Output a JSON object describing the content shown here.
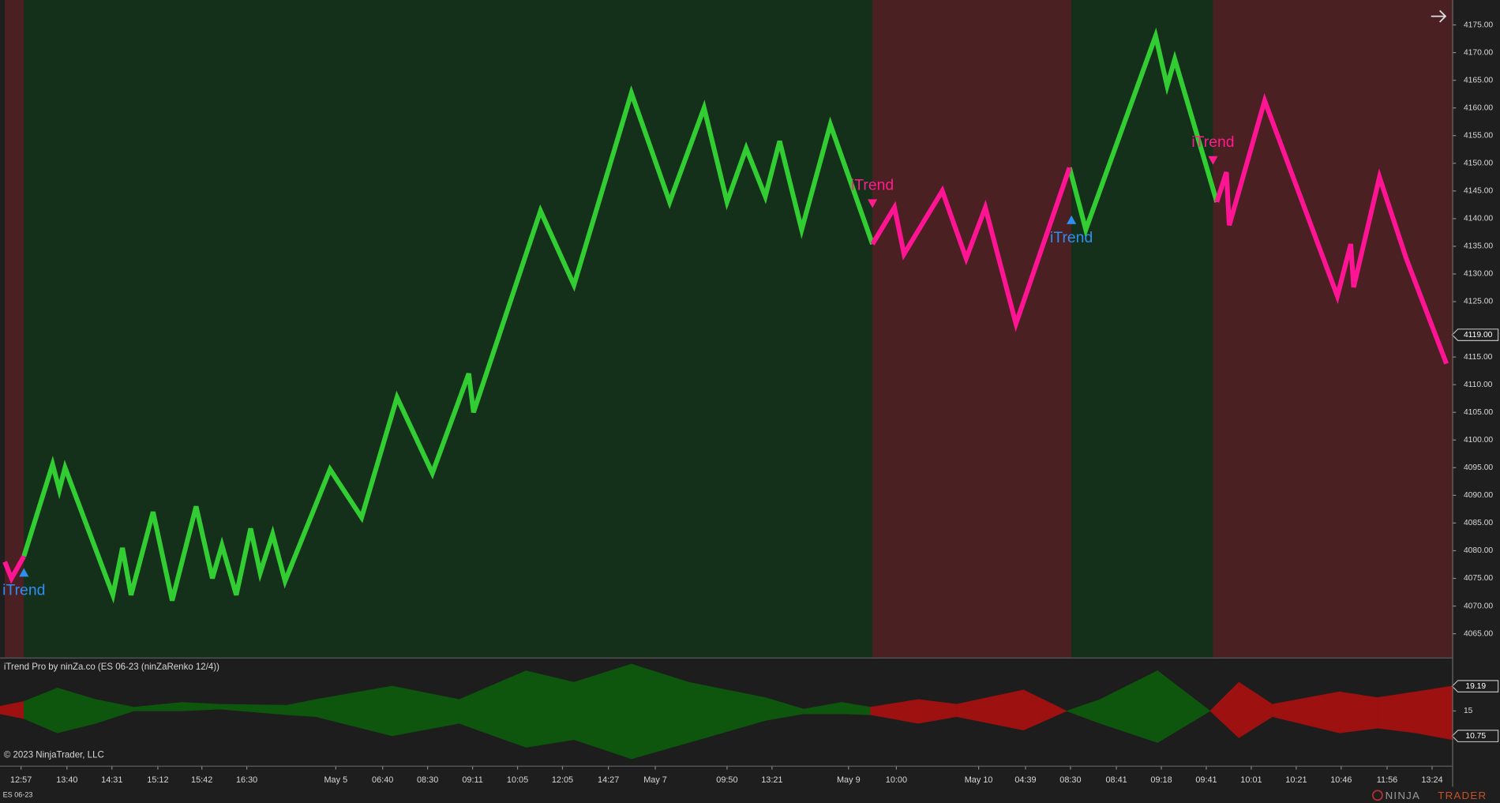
{
  "chart_data": {
    "type": "renko",
    "title": "iTrend Pro by ninZa.co (ES 06-23 (ninZaRenko 12/4))",
    "instrument_label": "ES 06-23",
    "copyright": "© 2023 NinjaTrader, LLC",
    "brand": [
      "NINJA",
      "TRADER"
    ],
    "xlim": [
      0,
      1518
    ],
    "ylim": [
      4060.7,
      4179.5
    ],
    "yticks": [
      {
        "value": 4065,
        "label": "4065.00"
      },
      {
        "value": 4070,
        "label": "4070.00"
      },
      {
        "value": 4075,
        "label": "4075.00"
      },
      {
        "value": 4080,
        "label": "4080.00"
      },
      {
        "value": 4085,
        "label": "4085.00"
      },
      {
        "value": 4090,
        "label": "4090.00"
      },
      {
        "value": 4095,
        "label": "4095.00"
      },
      {
        "value": 4100,
        "label": "4100.00"
      },
      {
        "value": 4105,
        "label": "4105.00"
      },
      {
        "value": 4110,
        "label": "4110.00"
      },
      {
        "value": 4115,
        "label": "4115.00"
      },
      {
        "value": 4125,
        "label": "4125.00"
      },
      {
        "value": 4130,
        "label": "4130.00"
      },
      {
        "value": 4135,
        "label": "4135.00"
      },
      {
        "value": 4140,
        "label": "4140.00"
      },
      {
        "value": 4145,
        "label": "4145.00"
      },
      {
        "value": 4150,
        "label": "4150.00"
      },
      {
        "value": 4155,
        "label": "4155.00"
      },
      {
        "value": 4160,
        "label": "4160.00"
      },
      {
        "value": 4165,
        "label": "4165.00"
      },
      {
        "value": 4170,
        "label": "4170.00"
      },
      {
        "value": 4175,
        "label": "4175.00"
      }
    ],
    "last_price": {
      "value": 4119,
      "label": "4119.00"
    },
    "xticks": [
      {
        "value": 22,
        "label": "12:57"
      },
      {
        "value": 70,
        "label": "13:40"
      },
      {
        "value": 117,
        "label": "14:31"
      },
      {
        "value": 165,
        "label": "15:12"
      },
      {
        "value": 211,
        "label": "15:42"
      },
      {
        "value": 258,
        "label": "16:30"
      },
      {
        "value": 351,
        "label": "May 5"
      },
      {
        "value": 400,
        "label": "06:40"
      },
      {
        "value": 447,
        "label": "08:30"
      },
      {
        "value": 494,
        "label": "09:11"
      },
      {
        "value": 541,
        "label": "10:05"
      },
      {
        "value": 588,
        "label": "12:05"
      },
      {
        "value": 636,
        "label": "14:27"
      },
      {
        "value": 685,
        "label": "May 7"
      },
      {
        "value": 760,
        "label": "09:50"
      },
      {
        "value": 807,
        "label": "13:21"
      },
      {
        "value": 887,
        "label": "May 9"
      },
      {
        "value": 937,
        "label": "10:00"
      },
      {
        "value": 1023,
        "label": "May 10"
      },
      {
        "value": 1072,
        "label": "04:39"
      },
      {
        "value": 1119,
        "label": "08:30"
      },
      {
        "value": 1167,
        "label": "08:41"
      },
      {
        "value": 1214,
        "label": "09:18"
      },
      {
        "value": 1261,
        "label": "09:41"
      },
      {
        "value": 1308,
        "label": "10:01"
      },
      {
        "value": 1355,
        "label": "10:21"
      },
      {
        "value": 1402,
        "label": "10:46"
      },
      {
        "value": 1450,
        "label": "11:56"
      },
      {
        "value": 1497,
        "label": "13:24"
      }
    ],
    "x": [
      5,
      12,
      25,
      55,
      62,
      68,
      118,
      128,
      137,
      160,
      180,
      205,
      222,
      232,
      247,
      262,
      272,
      285,
      298,
      345,
      378,
      415,
      452,
      490,
      495,
      565,
      600,
      660,
      700,
      736,
      760,
      780,
      800,
      815,
      838,
      868,
      912,
      935,
      945,
      985,
      1010,
      1030,
      1062,
      1118,
      1135,
      1208,
      1220,
      1228,
      1272,
      1282,
      1285,
      1322,
      1398,
      1412,
      1415,
      1442,
      1470,
      1512
    ],
    "series": [
      {
        "name": "up",
        "color": "#32cd32",
        "values": [
          null,
          null,
          4079,
          4095.6,
          4091,
          4095,
          4072,
          4080.5,
          4072,
          4087,
          4071,
          4088,
          4075,
          4081,
          4072,
          4084,
          4076,
          4083,
          4074.5,
          4094.7,
          4086,
          4107.7,
          4094,
          4112,
          4105,
          4141.4,
          4128,
          4162.7,
          4143,
          4160,
          4143,
          4152.7,
          4144,
          4154,
          4138,
          4157,
          4135.4,
          null,
          null,
          null,
          null,
          null,
          null,
          4149.2,
          4138,
          4173,
          4164,
          4168.8,
          4143,
          null,
          null,
          null,
          null,
          null,
          null,
          null,
          null,
          null
        ]
      },
      {
        "name": "down",
        "color": "#ff1493",
        "values": [
          4078,
          4075,
          4079,
          null,
          null,
          null,
          null,
          null,
          null,
          null,
          null,
          null,
          null,
          null,
          null,
          null,
          null,
          null,
          null,
          null,
          null,
          null,
          null,
          null,
          null,
          null,
          null,
          null,
          null,
          null,
          null,
          null,
          null,
          null,
          null,
          null,
          4135.4,
          4142,
          4133.6,
          4145,
          4132.8,
          4142,
          4121,
          4149.2,
          null,
          null,
          null,
          null,
          4143,
          4148.4,
          4138.8,
          4161.3,
          4126,
          4135.4,
          4127.6,
          4147.5,
          4132.8,
          4113.8
        ]
      }
    ],
    "zones": [
      {
        "start": 5,
        "end": 25,
        "trend": "down"
      },
      {
        "start": 25,
        "end": 912,
        "trend": "up"
      },
      {
        "start": 912,
        "end": 1120,
        "trend": "down"
      },
      {
        "start": 1120,
        "end": 1268,
        "trend": "up"
      },
      {
        "start": 1268,
        "end": 1518,
        "trend": "down"
      }
    ],
    "zone_colors": {
      "up": "#15301a",
      "down": "#4a2022"
    },
    "signals": [
      {
        "x": 25,
        "price": 4076,
        "direction": "up",
        "label": "iTrend"
      },
      {
        "x": 912,
        "price": 4142.8,
        "direction": "down",
        "label": "iTrend"
      },
      {
        "x": 1120,
        "price": 4139.7,
        "direction": "up",
        "label": "iTrend"
      },
      {
        "x": 1268,
        "price": 4150.6,
        "direction": "down",
        "label": "iTrend"
      }
    ],
    "signal_colors": {
      "up": "#2e8ff0",
      "down": "#ff1c8c"
    },
    "oscillator": {
      "ylim": [
        5.72,
        23.9
      ],
      "yticks": [
        15
      ],
      "markers": [
        19.19,
        10.75
      ],
      "colors": {
        "up": "#0e560e",
        "down": "#9e1111"
      },
      "x": [
        0,
        25,
        60,
        100,
        140,
        190,
        230,
        300,
        330,
        410,
        480,
        550,
        600,
        660,
        720,
        800,
        840,
        880,
        910,
        960,
        1000,
        1070,
        1115,
        1150,
        1210,
        1265,
        1295,
        1330,
        1400,
        1440,
        1480,
        1518
      ],
      "upper": [
        15.81,
        16.62,
        18.9,
        16.95,
        15.65,
        16.46,
        16.14,
        15.97,
        16.95,
        19.22,
        16.95,
        21.82,
        19.87,
        22.95,
        19.87,
        17.27,
        15.32,
        16.46,
        15.65,
        16.95,
        16.14,
        18.57,
        15,
        16.95,
        21.82,
        15,
        19.87,
        16.14,
        18.25,
        17.27,
        18.25,
        19.22
      ],
      "lower": [
        14.51,
        13.7,
        11.27,
        12.89,
        15,
        15,
        15.32,
        14.35,
        14.03,
        10.78,
        12.89,
        8.83,
        10.13,
        6.88,
        9.64,
        13.38,
        14.51,
        14.51,
        14.35,
        12.89,
        14.03,
        11.75,
        15,
        12.89,
        9.64,
        15,
        10.45,
        14.03,
        11.27,
        12.08,
        11.27,
        10.13
      ]
    }
  }
}
